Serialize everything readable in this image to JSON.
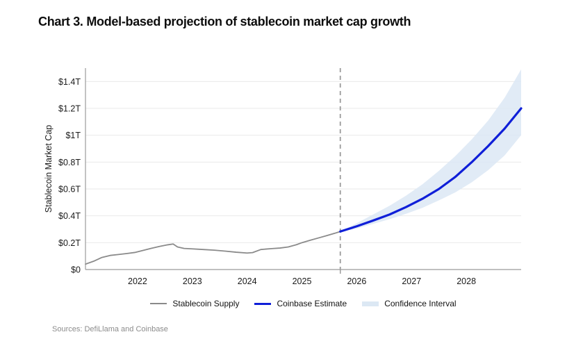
{
  "source_note": "Sources: DefiLlama and Coinbase",
  "chart_data": {
    "type": "line",
    "title": "Chart 3. Model-based projection of stablecoin market cap growth",
    "xlabel": "",
    "ylabel": "Stablecoin Market Cap",
    "xlim": [
      2021.05,
      2029.0
    ],
    "ylim": [
      0,
      1.5
    ],
    "grid": "horizontal",
    "legend_position": "bottom",
    "projection_start_x": 2025.7,
    "colors": {
      "grid": "#e9e9e9",
      "axis": "#9b9b9b",
      "divider": "#9b9b9b",
      "supply": "#8a8a8a",
      "estimate": "#0f1fd8",
      "band": "#dce8f4",
      "text": "#1a1a1a"
    },
    "x_ticks": [
      {
        "value": 2022,
        "label": "2022"
      },
      {
        "value": 2023,
        "label": "2023"
      },
      {
        "value": 2024,
        "label": "2024"
      },
      {
        "value": 2025,
        "label": "2025"
      },
      {
        "value": 2026,
        "label": "2026"
      },
      {
        "value": 2027,
        "label": "2027"
      },
      {
        "value": 2028,
        "label": "2028"
      }
    ],
    "y_ticks": [
      {
        "value": 0,
        "label": "$0"
      },
      {
        "value": 0.2,
        "label": "$0.2T"
      },
      {
        "value": 0.4,
        "label": "$0.4T"
      },
      {
        "value": 0.6,
        "label": "$0.6T"
      },
      {
        "value": 0.8,
        "label": "$0.8T"
      },
      {
        "value": 1.0,
        "label": "$1T"
      },
      {
        "value": 1.2,
        "label": "$1.2T"
      },
      {
        "value": 1.4,
        "label": "$1.4T"
      }
    ],
    "band": {
      "name": "Confidence Interval",
      "x": [
        2025.7,
        2026.0,
        2026.3,
        2026.6,
        2026.9,
        2027.2,
        2027.5,
        2027.8,
        2028.1,
        2028.4,
        2028.7,
        2029.0
      ],
      "upper": [
        0.285,
        0.345,
        0.41,
        0.475,
        0.55,
        0.635,
        0.735,
        0.845,
        0.97,
        1.11,
        1.28,
        1.49
      ],
      "lower": [
        0.281,
        0.305,
        0.34,
        0.375,
        0.415,
        0.46,
        0.515,
        0.575,
        0.65,
        0.74,
        0.85,
        1.0
      ]
    },
    "series": [
      {
        "name": "Stablecoin Supply",
        "role": "historical",
        "x": [
          2021.05,
          2021.2,
          2021.35,
          2021.5,
          2021.65,
          2021.8,
          2021.95,
          2022.1,
          2022.25,
          2022.4,
          2022.55,
          2022.65,
          2022.73,
          2022.85,
          2023.0,
          2023.2,
          2023.4,
          2023.6,
          2023.8,
          2024.0,
          2024.1,
          2024.25,
          2024.45,
          2024.6,
          2024.75,
          2024.9,
          2025.0,
          2025.15,
          2025.3,
          2025.45,
          2025.6,
          2025.7
        ],
        "y": [
          0.04,
          0.062,
          0.09,
          0.105,
          0.112,
          0.119,
          0.127,
          0.142,
          0.158,
          0.172,
          0.184,
          0.19,
          0.168,
          0.157,
          0.154,
          0.149,
          0.144,
          0.137,
          0.129,
          0.123,
          0.126,
          0.149,
          0.156,
          0.16,
          0.168,
          0.185,
          0.2,
          0.218,
          0.235,
          0.252,
          0.27,
          0.283
        ]
      },
      {
        "name": "Coinbase Estimate",
        "role": "projection",
        "x": [
          2025.7,
          2026.0,
          2026.3,
          2026.6,
          2026.9,
          2027.2,
          2027.5,
          2027.8,
          2028.1,
          2028.4,
          2028.7,
          2029.0
        ],
        "y": [
          0.283,
          0.322,
          0.365,
          0.41,
          0.465,
          0.527,
          0.6,
          0.69,
          0.8,
          0.92,
          1.05,
          1.2
        ]
      }
    ],
    "legend": [
      {
        "label": "Stablecoin Supply",
        "swatch": "line",
        "color": "#8a8a8a"
      },
      {
        "label": "Coinbase Estimate",
        "swatch": "line-thick",
        "color": "#0f1fd8"
      },
      {
        "label": "Confidence Interval",
        "swatch": "band",
        "color": "#dce8f4"
      }
    ]
  }
}
